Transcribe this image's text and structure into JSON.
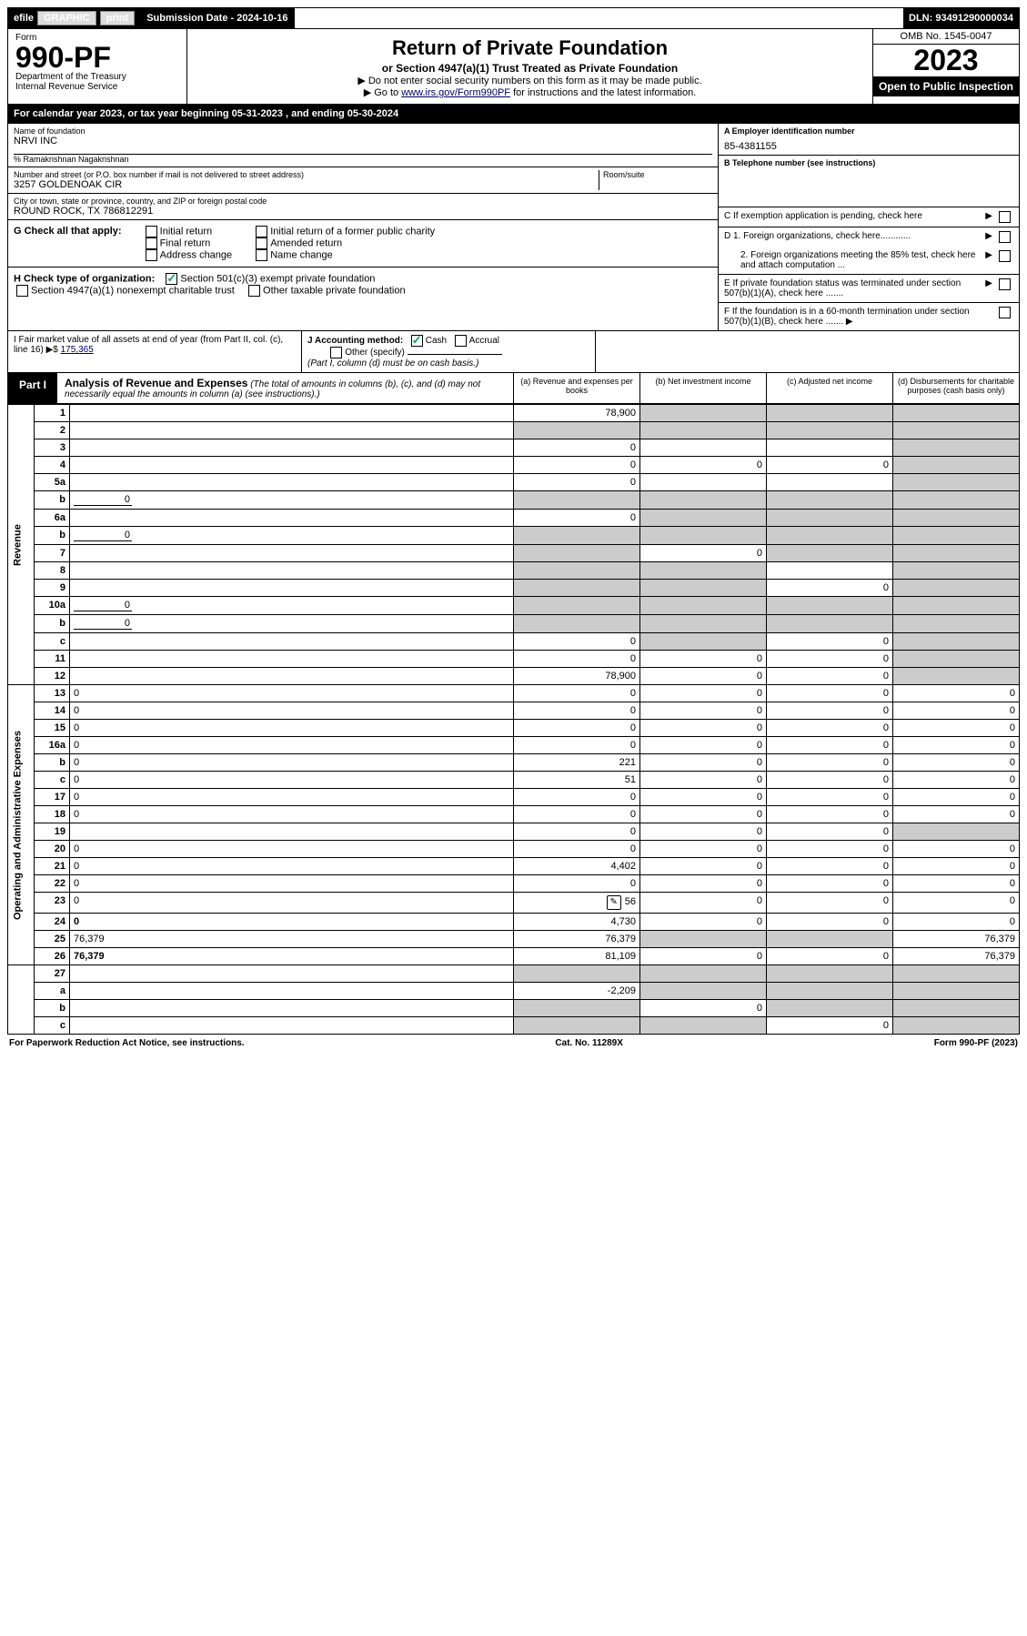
{
  "top_bar": {
    "efile_label": "efile",
    "graphic_label": "GRAPHIC",
    "print_label": "print",
    "submission_label": "Submission Date - 2024-10-16",
    "dln": "DLN: 93491290000034"
  },
  "header": {
    "form_label": "Form",
    "form_number": "990-PF",
    "dept": "Department of the Treasury",
    "irs": "Internal Revenue Service",
    "title": "Return of Private Foundation",
    "subtitle": "or Section 4947(a)(1) Trust Treated as Private Foundation",
    "instr1": "▶ Do not enter social security numbers on this form as it may be made public.",
    "instr2_pre": "▶ Go to ",
    "instr2_link": "www.irs.gov/Form990PF",
    "instr2_post": " for instructions and the latest information.",
    "omb": "OMB No. 1545-0047",
    "year": "2023",
    "open": "Open to Public Inspection"
  },
  "calendar": "For calendar year 2023, or tax year beginning 05-31-2023                             , and ending 05-30-2024",
  "foundation": {
    "name_label": "Name of foundation",
    "name": "NRVI INC",
    "care_of": "% Ramakrishnan Nagakrishnan",
    "addr_label": "Number and street (or P.O. box number if mail is not delivered to street address)",
    "addr": "3257 GOLDENOAK CIR",
    "room_label": "Room/suite",
    "city_label": "City or town, state or province, country, and ZIP or foreign postal code",
    "city": "ROUND ROCK, TX  786812291"
  },
  "right_info": {
    "a_label": "A Employer identification number",
    "a_val": "85-4381155",
    "b_label": "B Telephone number (see instructions)",
    "c_label": "C If exemption application is pending, check here",
    "d1": "D 1. Foreign organizations, check here............",
    "d2": "2. Foreign organizations meeting the 85% test, check here and attach computation ...",
    "e": "E   If private foundation status was terminated under section 507(b)(1)(A), check here .......",
    "f": "F   If the foundation is in a 60-month termination under section 507(b)(1)(B), check here .......  ▶"
  },
  "section_g": {
    "label": "G Check all that apply:",
    "items": [
      "Initial return",
      "Final return",
      "Address change",
      "Initial return of a former public charity",
      "Amended return",
      "Name change"
    ]
  },
  "section_h": {
    "label": "H Check type of organization:",
    "opt1": "Section 501(c)(3) exempt private foundation",
    "opt2": "Section 4947(a)(1) nonexempt charitable trust",
    "opt3": "Other taxable private foundation"
  },
  "section_i": {
    "label": "I Fair market value of all assets at end of year (from Part II, col. (c), line 16) ▶$",
    "val": "175,365"
  },
  "section_j": {
    "label": "J Accounting method:",
    "cash": "Cash",
    "accrual": "Accrual",
    "other": "Other (specify)",
    "note": "(Part I, column (d) must be on cash basis.)"
  },
  "part1": {
    "label": "Part I",
    "title": "Analysis of Revenue and Expenses",
    "desc": " (The total of amounts in columns (b), (c), and (d) may not necessarily equal the amounts in column (a) (see instructions).)",
    "col_a": "(a)   Revenue and expenses per books",
    "col_b": "(b)   Net investment income",
    "col_c": "(c)   Adjusted net income",
    "col_d": "(d)   Disbursements for charitable purposes (cash basis only)"
  },
  "side_revenue": "Revenue",
  "side_expenses": "Operating and Administrative Expenses",
  "rows": [
    {
      "n": "1",
      "d": "",
      "a": "78,900",
      "b": "",
      "c": "",
      "sb": true,
      "sc": true,
      "sd": true
    },
    {
      "n": "2",
      "d": "",
      "a": "",
      "b": "",
      "c": "",
      "sa": true,
      "sb": true,
      "sc": true,
      "sd": true,
      "noval": true
    },
    {
      "n": "3",
      "d": "",
      "a": "0",
      "b": "",
      "c": "",
      "sd": true
    },
    {
      "n": "4",
      "d": "",
      "a": "0",
      "b": "0",
      "c": "0",
      "sd": true
    },
    {
      "n": "5a",
      "d": "",
      "a": "0",
      "b": "",
      "c": "",
      "sd": true
    },
    {
      "n": "b",
      "d": "",
      "a": "",
      "b": "",
      "c": "",
      "inline": "0",
      "sa": true,
      "sb": true,
      "sc": true,
      "sd": true
    },
    {
      "n": "6a",
      "d": "",
      "a": "0",
      "b": "",
      "c": "",
      "sb": true,
      "sc": true,
      "sd": true
    },
    {
      "n": "b",
      "d": "",
      "a": "",
      "b": "",
      "c": "",
      "inline": "0",
      "sa": true,
      "sb": true,
      "sc": true,
      "sd": true
    },
    {
      "n": "7",
      "d": "",
      "a": "",
      "b": "0",
      "c": "",
      "sa": true,
      "sc": true,
      "sd": true
    },
    {
      "n": "8",
      "d": "",
      "a": "",
      "b": "",
      "c": "",
      "sa": true,
      "sb": true,
      "sd": true
    },
    {
      "n": "9",
      "d": "",
      "a": "",
      "b": "",
      "c": "0",
      "sa": true,
      "sb": true,
      "sd": true
    },
    {
      "n": "10a",
      "d": "",
      "a": "",
      "b": "",
      "c": "",
      "inline": "0",
      "sa": true,
      "sb": true,
      "sc": true,
      "sd": true
    },
    {
      "n": "b",
      "d": "",
      "a": "",
      "b": "",
      "c": "",
      "inline": "0",
      "sa": true,
      "sb": true,
      "sc": true,
      "sd": true
    },
    {
      "n": "c",
      "d": "",
      "a": "0",
      "b": "",
      "c": "0",
      "sb": true,
      "sd": true
    },
    {
      "n": "11",
      "d": "",
      "a": "0",
      "b": "0",
      "c": "0",
      "sd": true
    },
    {
      "n": "12",
      "d": "",
      "a": "78,900",
      "b": "0",
      "c": "0",
      "bold": true,
      "sd": true
    }
  ],
  "exp_rows": [
    {
      "n": "13",
      "d": "0",
      "a": "0",
      "b": "0",
      "c": "0"
    },
    {
      "n": "14",
      "d": "0",
      "a": "0",
      "b": "0",
      "c": "0"
    },
    {
      "n": "15",
      "d": "0",
      "a": "0",
      "b": "0",
      "c": "0"
    },
    {
      "n": "16a",
      "d": "0",
      "a": "0",
      "b": "0",
      "c": "0"
    },
    {
      "n": "b",
      "d": "0",
      "a": "221",
      "b": "0",
      "c": "0"
    },
    {
      "n": "c",
      "d": "0",
      "a": "51",
      "b": "0",
      "c": "0"
    },
    {
      "n": "17",
      "d": "0",
      "a": "0",
      "b": "0",
      "c": "0"
    },
    {
      "n": "18",
      "d": "0",
      "a": "0",
      "b": "0",
      "c": "0"
    },
    {
      "n": "19",
      "d": "",
      "a": "0",
      "b": "0",
      "c": "0",
      "sd": true
    },
    {
      "n": "20",
      "d": "0",
      "a": "0",
      "b": "0",
      "c": "0"
    },
    {
      "n": "21",
      "d": "0",
      "a": "4,402",
      "b": "0",
      "c": "0"
    },
    {
      "n": "22",
      "d": "0",
      "a": "0",
      "b": "0",
      "c": "0"
    },
    {
      "n": "23",
      "d": "0",
      "a": "56",
      "b": "0",
      "c": "0",
      "icon": true
    },
    {
      "n": "24",
      "d": "0",
      "a": "4,730",
      "b": "0",
      "c": "0",
      "bold": true,
      "tall": true
    },
    {
      "n": "25",
      "d": "76,379",
      "a": "76,379",
      "b": "",
      "c": "",
      "sb": true,
      "sc": true
    },
    {
      "n": "26",
      "d": "76,379",
      "a": "81,109",
      "b": "0",
      "c": "0",
      "bold": true,
      "tall": true
    }
  ],
  "bottom_rows": [
    {
      "n": "27",
      "d": "",
      "a": "",
      "b": "",
      "c": "",
      "sa": true,
      "sb": true,
      "sc": true,
      "sd": true
    },
    {
      "n": "a",
      "d": "",
      "a": "-2,209",
      "b": "",
      "c": "",
      "bold": true,
      "sb": true,
      "sc": true,
      "sd": true
    },
    {
      "n": "b",
      "d": "",
      "a": "",
      "b": "0",
      "c": "",
      "bold": true,
      "sa": true,
      "sc": true,
      "sd": true
    },
    {
      "n": "c",
      "d": "",
      "a": "",
      "b": "",
      "c": "0",
      "bold": true,
      "sa": true,
      "sb": true,
      "sd": true
    }
  ],
  "footer": {
    "left": "For Paperwork Reduction Act Notice, see instructions.",
    "mid": "Cat. No. 11289X",
    "right": "Form 990-PF (2023)"
  }
}
